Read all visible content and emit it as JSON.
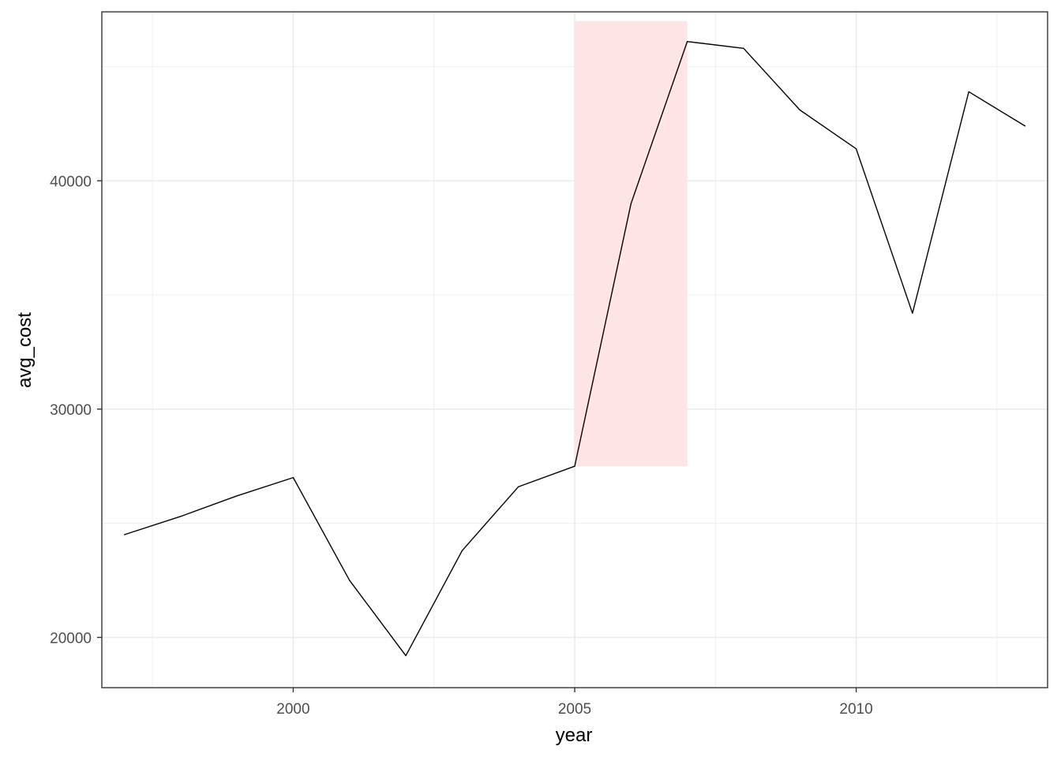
{
  "chart_data": {
    "type": "line",
    "title": "",
    "xlabel": "year",
    "ylabel": "avg_cost",
    "xlim": [
      1996.6,
      2013.4
    ],
    "ylim": [
      17800,
      47400
    ],
    "grid": true,
    "x_ticks": [
      2000,
      2005,
      2010
    ],
    "x_tick_labels": [
      "2000",
      "2005",
      "2010"
    ],
    "y_ticks": [
      20000,
      30000,
      40000
    ],
    "y_tick_labels": [
      "20000",
      "30000",
      "40000"
    ],
    "x_minor_ticks": [
      1997.5,
      2002.5,
      2007.5,
      2012.5
    ],
    "y_minor_ticks": [
      25000,
      35000,
      45000
    ],
    "colors": {
      "line": "#000000",
      "highlight": "#ffe4e6",
      "grid": "#ebebeb",
      "panel_border": "#333333"
    },
    "highlight": {
      "x_range": [
        2005,
        2007
      ],
      "y_range": [
        27500,
        47000
      ]
    },
    "series": [
      {
        "x": [
          1997,
          1998,
          1999,
          2000,
          2001,
          2002,
          2003,
          2004,
          2005,
          2006,
          2007,
          2008,
          2009,
          2010,
          2011,
          2012,
          2013
        ],
        "values": [
          24500,
          25300,
          26200,
          27000,
          22500,
          19200,
          23800,
          26600,
          27500,
          39000,
          46100,
          45800,
          43100,
          41400,
          34200,
          43900,
          42400
        ]
      }
    ]
  }
}
